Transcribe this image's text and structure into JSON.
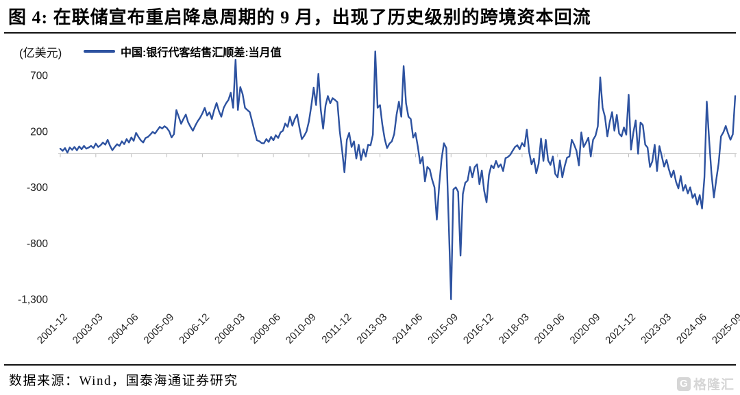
{
  "figure": {
    "title": "图 4: 在联储宣布重启降息周期的 9 月，出现了历史级别的跨境资本回流",
    "source_note": "数据来源：Wind，国泰海通证券研究",
    "watermark": "格隆汇",
    "watermark_icon_letter": "G"
  },
  "chart": {
    "unit_label": "(亿美元)",
    "legend_label": "中国:银行代客结售汇顺差:当月值"
  },
  "chart_data": {
    "type": "line",
    "title": "中国:银行代客结售汇顺差:当月值",
    "xlabel": "",
    "ylabel": "(亿美元)",
    "grid": false,
    "legend_position": "top",
    "line_color": "#2d52a0",
    "axis_color": "#c8c8c8",
    "tick_label_color": "#262626",
    "x_start": "2001-12",
    "x_end": "2025-09",
    "frequency": "monthly",
    "x_tick_labels": [
      "2001-12",
      "2003-03",
      "2004-06",
      "2005-09",
      "2006-12",
      "2008-03",
      "2009-06",
      "2010-09",
      "2011-12",
      "2013-03",
      "2014-06",
      "2015-09",
      "2016-12",
      "2018-03",
      "2019-06",
      "2020-09",
      "2021-12",
      "2023-03",
      "2024-06",
      "2025-09"
    ],
    "x_tick_step_months": 15,
    "y_ticks": [
      700,
      200,
      -300,
      -800,
      -1300
    ],
    "y_tick_labels": [
      "700",
      "200",
      "-300",
      "-800",
      "-1,300"
    ],
    "ylim": [
      -1400,
      980
    ],
    "series": [
      {
        "name": "中国:银行代客结售汇顺差:当月值",
        "values": [
          45,
          25,
          50,
          10,
          55,
          35,
          60,
          30,
          65,
          40,
          70,
          45,
          55,
          70,
          50,
          90,
          60,
          75,
          100,
          80,
          124,
          70,
          31,
          60,
          85,
          70,
          110,
          85,
          130,
          100,
          145,
          115,
          186,
          150,
          120,
          100,
          140,
          150,
          170,
          195,
          180,
          210,
          240,
          225,
          245,
          230,
          200,
          145,
          175,
          390,
          330,
          267,
          310,
          350,
          280,
          240,
          205,
          250,
          290,
          320,
          360,
          410,
          340,
          370,
          310,
          390,
          453,
          380,
          330,
          410,
          450,
          480,
          545,
          410,
          840,
          390,
          595,
          533,
          410,
          390,
          372,
          290,
          205,
          120,
          112,
          95,
          93,
          130,
          105,
          150,
          120,
          165,
          140,
          190,
          205,
          270,
          240,
          330,
          250,
          310,
          350,
          230,
          130,
          160,
          200,
          290,
          430,
          590,
          434,
          713,
          390,
          223,
          430,
          515,
          450,
          496,
          480,
          460,
          205,
          30,
          -167,
          124,
          186,
          60,
          110,
          -43,
          80,
          -56,
          40,
          -25,
          80,
          75,
          170,
          915,
          410,
          434,
          260,
          130,
          50,
          90,
          110,
          175,
          350,
          464,
          330,
          783,
          450,
          330,
          310,
          143,
          185,
          60,
          -87,
          -30,
          -248,
          -118,
          -140,
          -230,
          -300,
          -589,
          -280,
          -50,
          93,
          50,
          -600,
          -1300,
          -320,
          -300,
          -340,
          -910,
          -360,
          -260,
          -240,
          -118,
          -211,
          -120,
          -95,
          -273,
          -150,
          -330,
          -434,
          -190,
          -105,
          -130,
          -65,
          -120,
          -95,
          -155,
          -40,
          -30,
          -10,
          25,
          60,
          75,
          40,
          95,
          65,
          215,
          15,
          -95,
          -45,
          -175,
          -90,
          135,
          -65,
          124,
          -60,
          -100,
          -25,
          -180,
          -211,
          -60,
          -211,
          -110,
          -35,
          -25,
          124,
          80,
          25,
          -105,
          190,
          60,
          100,
          143,
          -25,
          125,
          160,
          245,
          682,
          410,
          330,
          155,
          280,
          372,
          205,
          347,
          180,
          155,
          235,
          170,
          527,
          37,
          190,
          298,
          0,
          279,
          255,
          80,
          55,
          -118,
          -70,
          80,
          -155,
          68,
          -25,
          -115,
          -55,
          -140,
          -210,
          -150,
          -250,
          -310,
          -200,
          -330,
          -280,
          -355,
          -300,
          -395,
          -360,
          -455,
          -370,
          -490,
          -210,
          465,
          120,
          -180,
          -390,
          -230,
          -87,
          155,
          190,
          248,
          180,
          124,
          174,
          515
        ]
      }
    ]
  }
}
